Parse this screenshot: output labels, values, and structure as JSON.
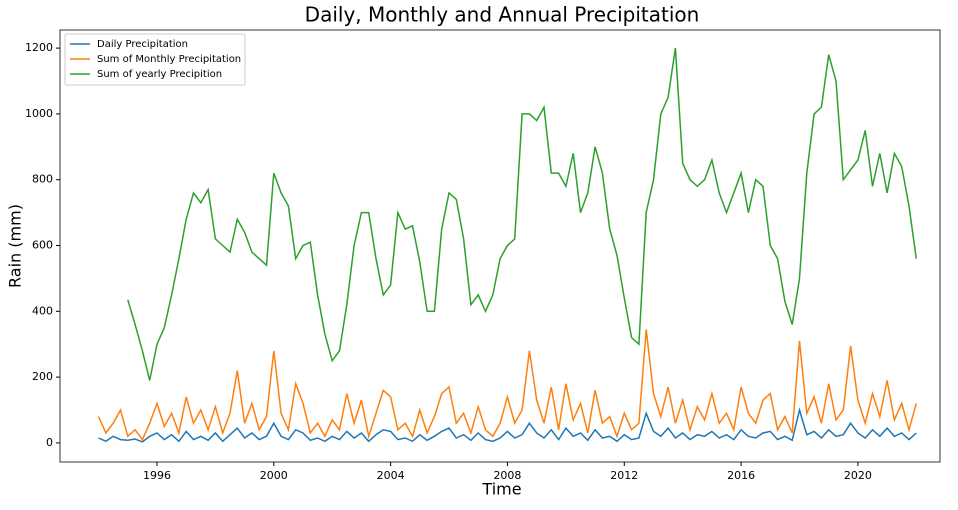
{
  "chart_data": {
    "type": "line",
    "title": "Daily, Monthly and Annual Precipitation",
    "x_label": "Time",
    "y_label": "Rain (mm)",
    "x": [
      1994,
      1994.25,
      1994.5,
      1994.75,
      1995,
      1995.25,
      1995.5,
      1995.75,
      1996,
      1996.25,
      1996.5,
      1996.75,
      1997,
      1997.25,
      1997.5,
      1997.75,
      1998,
      1998.25,
      1998.5,
      1998.75,
      1999,
      1999.25,
      1999.5,
      1999.75,
      2000,
      2000.25,
      2000.5,
      2000.75,
      2001,
      2001.25,
      2001.5,
      2001.75,
      2002,
      2002.25,
      2002.5,
      2002.75,
      2003,
      2003.25,
      2003.5,
      2003.75,
      2004,
      2004.25,
      2004.5,
      2004.75,
      2005,
      2005.25,
      2005.5,
      2005.75,
      2006,
      2006.25,
      2006.5,
      2006.75,
      2007,
      2007.25,
      2007.5,
      2007.75,
      2008,
      2008.25,
      2008.5,
      2008.75,
      2009,
      2009.25,
      2009.5,
      2009.75,
      2010,
      2010.25,
      2010.5,
      2010.75,
      2011,
      2011.25,
      2011.5,
      2011.75,
      2012,
      2012.25,
      2012.5,
      2012.75,
      2013,
      2013.25,
      2013.5,
      2013.75,
      2014,
      2014.25,
      2014.5,
      2014.75,
      2015,
      2015.25,
      2015.5,
      2015.75,
      2016,
      2016.25,
      2016.5,
      2016.75,
      2017,
      2017.25,
      2017.5,
      2017.75,
      2018,
      2018.25,
      2018.5,
      2018.75,
      2019,
      2019.25,
      2019.5,
      2019.75,
      2020,
      2020.25,
      2020.5,
      2020.75,
      2021,
      2021.25,
      2021.5,
      2021.75,
      2022
    ],
    "series": [
      {
        "name": "Daily Precipitation",
        "color": "#1f77b4",
        "values": [
          15,
          5,
          20,
          10,
          8,
          12,
          3,
          20,
          30,
          10,
          25,
          5,
          35,
          10,
          20,
          8,
          30,
          5,
          25,
          45,
          15,
          30,
          10,
          20,
          60,
          20,
          10,
          40,
          30,
          8,
          15,
          5,
          20,
          10,
          35,
          15,
          30,
          5,
          25,
          40,
          35,
          10,
          15,
          5,
          25,
          8,
          20,
          35,
          45,
          15,
          25,
          8,
          30,
          10,
          5,
          15,
          35,
          15,
          25,
          60,
          30,
          15,
          40,
          10,
          45,
          20,
          30,
          8,
          40,
          15,
          20,
          5,
          25,
          10,
          15,
          90,
          35,
          20,
          45,
          15,
          30,
          10,
          25,
          20,
          35,
          15,
          25,
          10,
          40,
          20,
          15,
          30,
          35,
          10,
          20,
          8,
          100,
          25,
          35,
          15,
          40,
          20,
          25,
          60,
          30,
          15,
          40,
          20,
          45,
          20,
          30,
          10,
          30
        ]
      },
      {
        "name": "Sum of Monthly Precipitation",
        "color": "#ff7f0e",
        "values": [
          80,
          30,
          60,
          100,
          20,
          40,
          10,
          60,
          120,
          50,
          90,
          30,
          140,
          60,
          100,
          40,
          110,
          30,
          90,
          220,
          60,
          120,
          40,
          80,
          280,
          90,
          40,
          180,
          120,
          30,
          60,
          20,
          70,
          40,
          150,
          60,
          130,
          20,
          90,
          160,
          140,
          40,
          60,
          20,
          100,
          30,
          80,
          150,
          170,
          60,
          90,
          30,
          110,
          40,
          20,
          60,
          140,
          60,
          100,
          280,
          130,
          60,
          170,
          40,
          180,
          70,
          120,
          30,
          160,
          60,
          80,
          20,
          90,
          40,
          60,
          345,
          150,
          80,
          170,
          60,
          130,
          40,
          110,
          70,
          150,
          60,
          90,
          40,
          170,
          90,
          60,
          130,
          150,
          40,
          80,
          30,
          310,
          90,
          140,
          60,
          180,
          70,
          100,
          295,
          130,
          60,
          150,
          80,
          190,
          70,
          120,
          40,
          120
        ]
      },
      {
        "name": "Sum of yearly Precipition",
        "color": "#2ca02c",
        "values": [
          null,
          null,
          null,
          null,
          435,
          360,
          280,
          190,
          300,
          350,
          450,
          560,
          680,
          760,
          730,
          770,
          620,
          600,
          580,
          680,
          640,
          580,
          560,
          540,
          820,
          760,
          720,
          560,
          600,
          610,
          450,
          330,
          250,
          280,
          420,
          600,
          700,
          700,
          560,
          450,
          480,
          700,
          650,
          660,
          550,
          400,
          400,
          650,
          760,
          740,
          620,
          420,
          450,
          400,
          450,
          560,
          600,
          620,
          1000,
          1000,
          980,
          1020,
          820,
          820,
          780,
          880,
          700,
          760,
          900,
          820,
          650,
          570,
          440,
          320,
          300,
          700,
          800,
          1000,
          1050,
          1200,
          850,
          800,
          780,
          800,
          860,
          760,
          700,
          760,
          820,
          700,
          800,
          780,
          600,
          560,
          430,
          360,
          500,
          820,
          1000,
          1020,
          1180,
          1100,
          800,
          830,
          860,
          950,
          780,
          880,
          760,
          880,
          840,
          720,
          560
        ]
      }
    ],
    "xlim": [
      1992.68,
      2022.81
    ],
    "xticks": [
      1996,
      2000,
      2004,
      2008,
      2012,
      2016,
      2020
    ],
    "ylim": [
      -58,
      1255
    ],
    "yticks": [
      0,
      200,
      400,
      600,
      800,
      1000,
      1200
    ],
    "legend": "upper left"
  }
}
